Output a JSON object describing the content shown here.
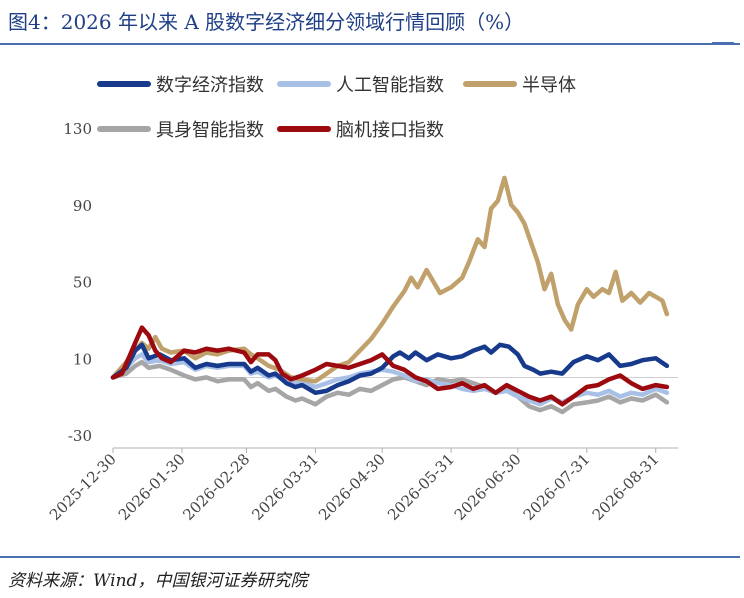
{
  "title": "图4：2026 年以来 A 股数字经济细分领域行情回顾（%）",
  "source": "资料来源：Wind，中国银河证券研究院",
  "chart_data": {
    "type": "line",
    "title": "",
    "xlabel": "",
    "ylabel": "",
    "ylim": [
      -30,
      130
    ],
    "yticks": [
      -30,
      10,
      50,
      90,
      130
    ],
    "xlim": [
      "2025-12-30",
      "2026-09-10"
    ],
    "xticks": [
      "2025-12-30",
      "2026-01-30",
      "2026-02-28",
      "2026-03-31",
      "2026-04-30",
      "2026-05-31",
      "2026-06-30",
      "2026-07-31",
      "2026-08-31"
    ],
    "grid": false,
    "legend_position": "top",
    "series": [
      {
        "name": "数字经济指数",
        "color": "#173a8c",
        "points": [
          [
            "2025-12-30",
            0
          ],
          [
            "2026-01-05",
            5
          ],
          [
            "2026-01-09",
            14
          ],
          [
            "2026-01-12",
            17
          ],
          [
            "2026-01-15",
            10
          ],
          [
            "2026-01-20",
            12
          ],
          [
            "2026-01-25",
            9
          ],
          [
            "2026-01-31",
            10
          ],
          [
            "2026-02-05",
            5
          ],
          [
            "2026-02-10",
            7
          ],
          [
            "2026-02-15",
            6
          ],
          [
            "2026-02-20",
            7
          ],
          [
            "2026-02-27",
            7
          ],
          [
            "2026-03-02",
            3
          ],
          [
            "2026-03-05",
            5
          ],
          [
            "2026-03-10",
            1
          ],
          [
            "2026-03-13",
            2
          ],
          [
            "2026-03-18",
            -3
          ],
          [
            "2026-03-22",
            -5
          ],
          [
            "2026-03-25",
            -4
          ],
          [
            "2026-03-31",
            -8
          ],
          [
            "2026-04-05",
            -7
          ],
          [
            "2026-04-10",
            -4
          ],
          [
            "2026-04-15",
            -2
          ],
          [
            "2026-04-20",
            1
          ],
          [
            "2026-04-25",
            2
          ],
          [
            "2026-04-30",
            5
          ],
          [
            "2026-05-05",
            11
          ],
          [
            "2026-05-08",
            13
          ],
          [
            "2026-05-12",
            10
          ],
          [
            "2026-05-15",
            13
          ],
          [
            "2026-05-20",
            9
          ],
          [
            "2026-05-25",
            12
          ],
          [
            "2026-05-31",
            10
          ],
          [
            "2026-06-05",
            11
          ],
          [
            "2026-06-10",
            14
          ],
          [
            "2026-06-15",
            16
          ],
          [
            "2026-06-18",
            13
          ],
          [
            "2026-06-22",
            17
          ],
          [
            "2026-06-26",
            16
          ],
          [
            "2026-06-30",
            12
          ],
          [
            "2026-07-03",
            6
          ],
          [
            "2026-07-07",
            4
          ],
          [
            "2026-07-10",
            2
          ],
          [
            "2026-07-15",
            3
          ],
          [
            "2026-07-20",
            2
          ],
          [
            "2026-07-25",
            8
          ],
          [
            "2026-07-31",
            11
          ],
          [
            "2026-08-05",
            9
          ],
          [
            "2026-08-10",
            12
          ],
          [
            "2026-08-15",
            6
          ],
          [
            "2026-08-20",
            7
          ],
          [
            "2026-08-25",
            9
          ],
          [
            "2026-08-31",
            10
          ],
          [
            "2026-09-05",
            6
          ]
        ]
      },
      {
        "name": "人工智能指数",
        "color": "#a8c0e6",
        "points": [
          [
            "2025-12-30",
            0
          ],
          [
            "2026-01-05",
            5
          ],
          [
            "2026-01-09",
            10
          ],
          [
            "2026-01-12",
            12
          ],
          [
            "2026-01-15",
            8
          ],
          [
            "2026-01-20",
            9
          ],
          [
            "2026-01-25",
            7
          ],
          [
            "2026-01-31",
            8
          ],
          [
            "2026-02-05",
            4
          ],
          [
            "2026-02-10",
            6
          ],
          [
            "2026-02-15",
            5
          ],
          [
            "2026-02-20",
            6
          ],
          [
            "2026-02-27",
            6
          ],
          [
            "2026-03-02",
            2
          ],
          [
            "2026-03-05",
            3
          ],
          [
            "2026-03-10",
            0
          ],
          [
            "2026-03-13",
            1
          ],
          [
            "2026-03-18",
            -2
          ],
          [
            "2026-03-22",
            -3
          ],
          [
            "2026-03-25",
            -2
          ],
          [
            "2026-03-31",
            -5
          ],
          [
            "2026-04-05",
            -3
          ],
          [
            "2026-04-10",
            -1
          ],
          [
            "2026-04-15",
            0
          ],
          [
            "2026-04-20",
            2
          ],
          [
            "2026-04-25",
            3
          ],
          [
            "2026-04-30",
            4
          ],
          [
            "2026-05-05",
            3
          ],
          [
            "2026-05-10",
            1
          ],
          [
            "2026-05-15",
            -2
          ],
          [
            "2026-05-20",
            -1
          ],
          [
            "2026-05-25",
            -3
          ],
          [
            "2026-05-31",
            -4
          ],
          [
            "2026-06-05",
            -6
          ],
          [
            "2026-06-10",
            -7
          ],
          [
            "2026-06-15",
            -6
          ],
          [
            "2026-06-20",
            -8
          ],
          [
            "2026-06-25",
            -7
          ],
          [
            "2026-06-30",
            -10
          ],
          [
            "2026-07-05",
            -12
          ],
          [
            "2026-07-10",
            -14
          ],
          [
            "2026-07-15",
            -11
          ],
          [
            "2026-07-20",
            -13
          ],
          [
            "2026-07-25",
            -10
          ],
          [
            "2026-07-31",
            -8
          ],
          [
            "2026-08-05",
            -9
          ],
          [
            "2026-08-10",
            -7
          ],
          [
            "2026-08-15",
            -10
          ],
          [
            "2026-08-20",
            -8
          ],
          [
            "2026-08-25",
            -9
          ],
          [
            "2026-08-31",
            -6
          ],
          [
            "2026-09-05",
            -8
          ]
        ]
      },
      {
        "name": "半导体",
        "color": "#c0a16b",
        "points": [
          [
            "2025-12-30",
            0
          ],
          [
            "2026-01-05",
            8
          ],
          [
            "2026-01-09",
            14
          ],
          [
            "2026-01-12",
            18
          ],
          [
            "2026-01-15",
            15
          ],
          [
            "2026-01-18",
            21
          ],
          [
            "2026-01-21",
            15
          ],
          [
            "2026-01-25",
            13
          ],
          [
            "2026-01-31",
            14
          ],
          [
            "2026-02-05",
            10
          ],
          [
            "2026-02-10",
            13
          ],
          [
            "2026-02-15",
            12
          ],
          [
            "2026-02-20",
            14
          ],
          [
            "2026-02-27",
            15
          ],
          [
            "2026-03-02",
            12
          ],
          [
            "2026-03-05",
            10
          ],
          [
            "2026-03-10",
            6
          ],
          [
            "2026-03-15",
            4
          ],
          [
            "2026-03-20",
            0
          ],
          [
            "2026-03-25",
            -1
          ],
          [
            "2026-03-31",
            -2
          ],
          [
            "2026-04-05",
            2
          ],
          [
            "2026-04-10",
            6
          ],
          [
            "2026-04-15",
            8
          ],
          [
            "2026-04-20",
            14
          ],
          [
            "2026-04-25",
            20
          ],
          [
            "2026-04-30",
            28
          ],
          [
            "2026-05-05",
            37
          ],
          [
            "2026-05-10",
            45
          ],
          [
            "2026-05-13",
            52
          ],
          [
            "2026-05-16",
            47
          ],
          [
            "2026-05-20",
            56
          ],
          [
            "2026-05-23",
            50
          ],
          [
            "2026-05-26",
            44
          ],
          [
            "2026-05-31",
            47
          ],
          [
            "2026-06-05",
            52
          ],
          [
            "2026-06-08",
            60
          ],
          [
            "2026-06-12",
            72
          ],
          [
            "2026-06-15",
            68
          ],
          [
            "2026-06-18",
            88
          ],
          [
            "2026-06-21",
            92
          ],
          [
            "2026-06-24",
            104
          ],
          [
            "2026-06-27",
            90
          ],
          [
            "2026-06-30",
            86
          ],
          [
            "2026-07-03",
            80
          ],
          [
            "2026-07-06",
            70
          ],
          [
            "2026-07-09",
            60
          ],
          [
            "2026-07-12",
            46
          ],
          [
            "2026-07-15",
            54
          ],
          [
            "2026-07-18",
            38
          ],
          [
            "2026-07-21",
            30
          ],
          [
            "2026-07-24",
            25
          ],
          [
            "2026-07-27",
            38
          ],
          [
            "2026-07-31",
            46
          ],
          [
            "2026-08-03",
            42
          ],
          [
            "2026-08-07",
            46
          ],
          [
            "2026-08-10",
            44
          ],
          [
            "2026-08-13",
            55
          ],
          [
            "2026-08-16",
            40
          ],
          [
            "2026-08-20",
            44
          ],
          [
            "2026-08-24",
            39
          ],
          [
            "2026-08-28",
            44
          ],
          [
            "2026-08-31",
            42
          ],
          [
            "2026-09-03",
            40
          ],
          [
            "2026-09-05",
            33
          ]
        ]
      },
      {
        "name": "具身智能指数",
        "color": "#a6a6a6",
        "points": [
          [
            "2025-12-30",
            0
          ],
          [
            "2026-01-05",
            2
          ],
          [
            "2026-01-09",
            6
          ],
          [
            "2026-01-12",
            8
          ],
          [
            "2026-01-15",
            5
          ],
          [
            "2026-01-20",
            6
          ],
          [
            "2026-01-25",
            4
          ],
          [
            "2026-01-31",
            1
          ],
          [
            "2026-02-05",
            -1
          ],
          [
            "2026-02-10",
            0
          ],
          [
            "2026-02-15",
            -2
          ],
          [
            "2026-02-20",
            -1
          ],
          [
            "2026-02-27",
            -1
          ],
          [
            "2026-03-02",
            -5
          ],
          [
            "2026-03-05",
            -3
          ],
          [
            "2026-03-10",
            -7
          ],
          [
            "2026-03-13",
            -6
          ],
          [
            "2026-03-18",
            -10
          ],
          [
            "2026-03-22",
            -12
          ],
          [
            "2026-03-25",
            -11
          ],
          [
            "2026-03-31",
            -14
          ],
          [
            "2026-04-05",
            -10
          ],
          [
            "2026-04-10",
            -8
          ],
          [
            "2026-04-15",
            -9
          ],
          [
            "2026-04-20",
            -6
          ],
          [
            "2026-04-25",
            -7
          ],
          [
            "2026-04-30",
            -4
          ],
          [
            "2026-05-05",
            -1
          ],
          [
            "2026-05-10",
            0
          ],
          [
            "2026-05-15",
            -2
          ],
          [
            "2026-05-20",
            -4
          ],
          [
            "2026-05-25",
            -1
          ],
          [
            "2026-05-31",
            -2
          ],
          [
            "2026-06-05",
            -1
          ],
          [
            "2026-06-10",
            -3
          ],
          [
            "2026-06-15",
            -5
          ],
          [
            "2026-06-20",
            -8
          ],
          [
            "2026-06-25",
            -6
          ],
          [
            "2026-06-30",
            -10
          ],
          [
            "2026-07-05",
            -15
          ],
          [
            "2026-07-10",
            -17
          ],
          [
            "2026-07-15",
            -15
          ],
          [
            "2026-07-20",
            -18
          ],
          [
            "2026-07-25",
            -14
          ],
          [
            "2026-07-31",
            -13
          ],
          [
            "2026-08-05",
            -12
          ],
          [
            "2026-08-10",
            -10
          ],
          [
            "2026-08-15",
            -13
          ],
          [
            "2026-08-20",
            -11
          ],
          [
            "2026-08-25",
            -12
          ],
          [
            "2026-08-31",
            -9
          ],
          [
            "2026-09-05",
            -13
          ]
        ]
      },
      {
        "name": "脑机接口指数",
        "color": "#9c0a0f",
        "points": [
          [
            "2025-12-30",
            0
          ],
          [
            "2026-01-03",
            2
          ],
          [
            "2026-01-06",
            10
          ],
          [
            "2026-01-09",
            18
          ],
          [
            "2026-01-12",
            26
          ],
          [
            "2026-01-15",
            22
          ],
          [
            "2026-01-18",
            14
          ],
          [
            "2026-01-21",
            10
          ],
          [
            "2026-01-25",
            8
          ],
          [
            "2026-01-31",
            14
          ],
          [
            "2026-02-05",
            13
          ],
          [
            "2026-02-10",
            15
          ],
          [
            "2026-02-15",
            14
          ],
          [
            "2026-02-20",
            15
          ],
          [
            "2026-02-27",
            13
          ],
          [
            "2026-03-02",
            8
          ],
          [
            "2026-03-05",
            12
          ],
          [
            "2026-03-10",
            12
          ],
          [
            "2026-03-13",
            9
          ],
          [
            "2026-03-16",
            2
          ],
          [
            "2026-03-20",
            -1
          ],
          [
            "2026-03-25",
            1
          ],
          [
            "2026-03-31",
            4
          ],
          [
            "2026-04-05",
            7
          ],
          [
            "2026-04-10",
            6
          ],
          [
            "2026-04-15",
            5
          ],
          [
            "2026-04-20",
            7
          ],
          [
            "2026-04-25",
            9
          ],
          [
            "2026-04-30",
            12
          ],
          [
            "2026-05-05",
            6
          ],
          [
            "2026-05-10",
            4
          ],
          [
            "2026-05-15",
            0
          ],
          [
            "2026-05-20",
            -2
          ],
          [
            "2026-05-25",
            -6
          ],
          [
            "2026-05-31",
            -5
          ],
          [
            "2026-06-05",
            -3
          ],
          [
            "2026-06-10",
            -6
          ],
          [
            "2026-06-15",
            -4
          ],
          [
            "2026-06-20",
            -8
          ],
          [
            "2026-06-25",
            -4
          ],
          [
            "2026-06-30",
            -7
          ],
          [
            "2026-07-05",
            -10
          ],
          [
            "2026-07-10",
            -12
          ],
          [
            "2026-07-15",
            -10
          ],
          [
            "2026-07-20",
            -14
          ],
          [
            "2026-07-25",
            -10
          ],
          [
            "2026-07-31",
            -5
          ],
          [
            "2026-08-05",
            -4
          ],
          [
            "2026-08-10",
            -1
          ],
          [
            "2026-08-15",
            1
          ],
          [
            "2026-08-20",
            -3
          ],
          [
            "2026-08-25",
            -6
          ],
          [
            "2026-08-31",
            -4
          ],
          [
            "2026-09-05",
            -5
          ]
        ]
      }
    ]
  }
}
